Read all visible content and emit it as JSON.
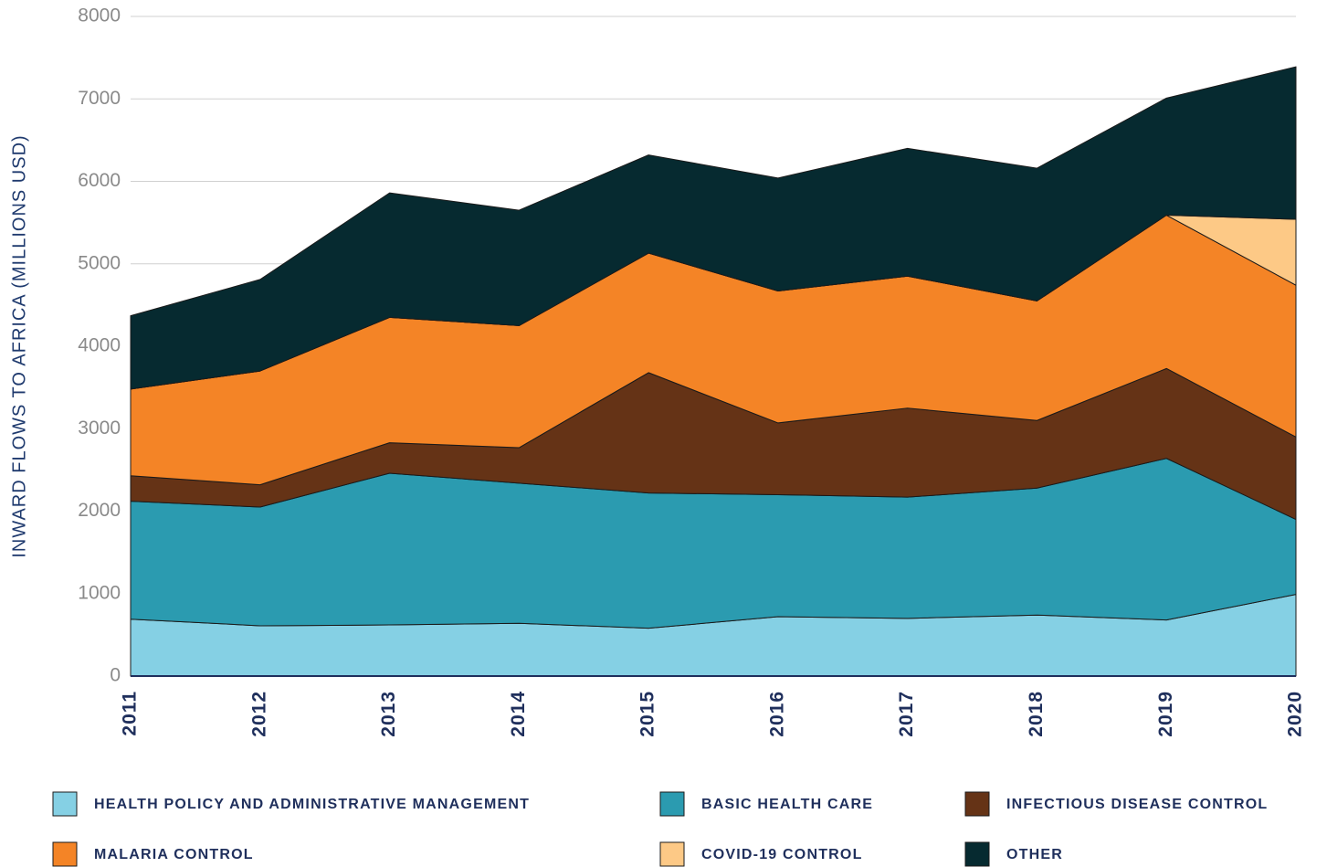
{
  "chart_data": {
    "type": "stacked_area",
    "y_axis_label": "INWARD FLOWS TO AFRICA (MILLIONS USD)",
    "categories": [
      "2011",
      "2012",
      "2013",
      "2014",
      "2015",
      "2016",
      "2017",
      "2018",
      "2019",
      "2020"
    ],
    "series": [
      {
        "name": "HEALTH POLICY AND ADMINISTRATIVE MANAGEMENT",
        "color": "#85d0e4",
        "values": [
          690,
          610,
          620,
          640,
          580,
          720,
          700,
          740,
          680,
          990
        ]
      },
      {
        "name": "BASIC HEALTH CARE",
        "color": "#2b9bb0",
        "values": [
          1430,
          1440,
          1840,
          1700,
          1640,
          1480,
          1470,
          1540,
          1960,
          910
        ]
      },
      {
        "name": "INFECTIOUS DISEASE CONTROL",
        "color": "#653316",
        "values": [
          310,
          270,
          370,
          430,
          1460,
          870,
          1080,
          820,
          1090,
          1000
        ]
      },
      {
        "name": "MALARIA CONTROL",
        "color": "#f48426",
        "values": [
          1050,
          1380,
          1520,
          1480,
          1450,
          1600,
          1600,
          1450,
          1860,
          1840
        ]
      },
      {
        "name": "COVID-19 CONTROL",
        "color": "#fdc986",
        "values": [
          0,
          0,
          0,
          0,
          0,
          0,
          0,
          0,
          0,
          800
        ]
      },
      {
        "name": "OTHER",
        "color": "#062a30",
        "values": [
          890,
          1110,
          1510,
          1400,
          1190,
          1370,
          1550,
          1610,
          1420,
          1850
        ]
      }
    ],
    "ylim": [
      0,
      8000
    ],
    "yticks": [
      0,
      1000,
      2000,
      3000,
      4000,
      5000,
      6000,
      7000,
      8000
    ],
    "grid": true
  }
}
